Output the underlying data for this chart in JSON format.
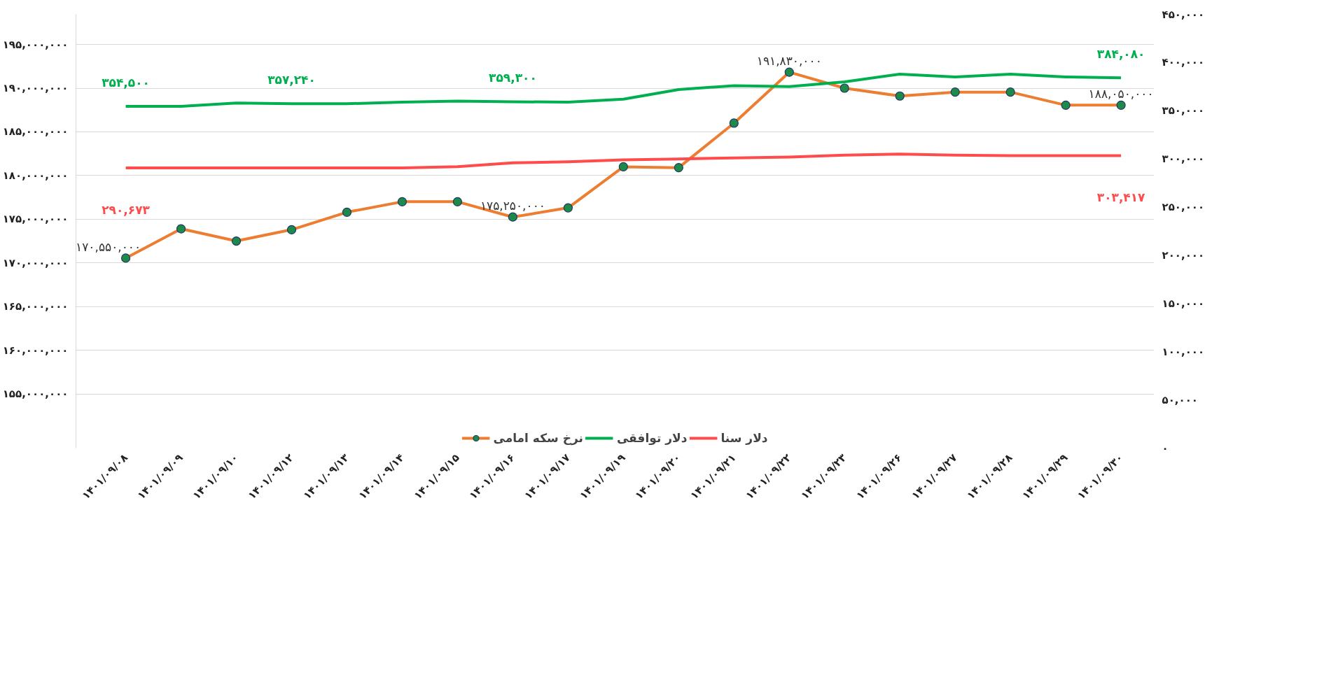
{
  "chart_data": {
    "type": "line",
    "categories": [
      "۱۴۰۱/۰۹/۰۸",
      "۱۴۰۱/۰۹/۰۹",
      "۱۴۰۱/۰۹/۱۰",
      "۱۴۰۱/۰۹/۱۲",
      "۱۴۰۱/۰۹/۱۳",
      "۱۴۰۱/۰۹/۱۴",
      "۱۴۰۱/۰۹/۱۵",
      "۱۴۰۱/۰۹/۱۶",
      "۱۴۰۱/۰۹/۱۷",
      "۱۴۰۱/۰۹/۱۹",
      "۱۴۰۱/۰۹/۲۰",
      "۱۴۰۱/۰۹/۲۱",
      "۱۴۰۱/۰۹/۲۲",
      "۱۴۰۱/۰۹/۲۳",
      "۱۴۰۱/۰۹/۲۶",
      "۱۴۰۱/۰۹/۲۷",
      "۱۴۰۱/۰۹/۲۸",
      "۱۴۰۱/۰۹/۲۹",
      "۱۴۰۱/۰۹/۳۰"
    ],
    "series": [
      {
        "name": "نرخ سکه امامی",
        "color": "#ed7d31",
        "marker": "circle",
        "values": [
          170550000,
          173900000,
          172500000,
          173800000,
          175800000,
          177000000,
          177000000,
          175250000,
          176300000,
          181000000,
          180900000,
          186000000,
          191830000,
          190000000,
          189100000,
          189550000,
          189550000,
          188050000,
          188050000
        ],
        "value_labels": [
          "۱۷۰,۵۵۰,۰۰۰",
          null,
          null,
          null,
          null,
          null,
          null,
          "۱۷۵,۲۵۰,۰۰۰",
          null,
          null,
          null,
          null,
          "۱۹۱,۸۳۰,۰۰۰",
          null,
          null,
          null,
          null,
          null,
          "۱۸۸,۰۵۰,۰۰۰"
        ]
      },
      {
        "name": "دلار توافقی",
        "color": "#00b050",
        "axis": "y2",
        "values": [
          354500,
          354500,
          358000,
          357240,
          357240,
          359000,
          360000,
          359300,
          359000,
          362000,
          372000,
          376000,
          375000,
          380000,
          388000,
          385000,
          388000,
          385000,
          384080
        ],
        "value_labels": [
          "۳۵۴,۵۰۰",
          null,
          null,
          "۳۵۷,۲۴۰",
          null,
          null,
          null,
          "۳۵۹,۳۰۰",
          null,
          null,
          null,
          null,
          null,
          null,
          null,
          null,
          null,
          null,
          "۳۸۴,۰۸۰"
        ]
      },
      {
        "name": "دلار سنا",
        "color": "#ff4b4b",
        "axis": "y2",
        "values": [
          290673,
          290673,
          290673,
          290673,
          290673,
          290673,
          292000,
          296000,
          297000,
          299000,
          300000,
          301000,
          302000,
          304000,
          305000,
          304000,
          303417,
          303417,
          303417
        ],
        "value_labels": [
          "۲۹۰,۶۷۳",
          null,
          null,
          null,
          null,
          null,
          null,
          null,
          null,
          null,
          null,
          null,
          null,
          null,
          null,
          null,
          null,
          null,
          "۳۰۳,۴۱۷"
        ]
      }
    ],
    "ylim": [
      148800000,
      198450000
    ],
    "yticks": [
      {
        "value": 155000000,
        "label": "۱۵۵,۰۰۰,۰۰۰"
      },
      {
        "value": 160000000,
        "label": "۱۶۰,۰۰۰,۰۰۰"
      },
      {
        "value": 165000000,
        "label": "۱۶۵,۰۰۰,۰۰۰"
      },
      {
        "value": 170000000,
        "label": "۱۷۰,۰۰۰,۰۰۰"
      },
      {
        "value": 175000000,
        "label": "۱۷۵,۰۰۰,۰۰۰"
      },
      {
        "value": 180000000,
        "label": "۱۸۰,۰۰۰,۰۰۰"
      },
      {
        "value": 185000000,
        "label": "۱۸۵,۰۰۰,۰۰۰"
      },
      {
        "value": 190000000,
        "label": "۱۹۰,۰۰۰,۰۰۰"
      },
      {
        "value": 195000000,
        "label": "۱۹۵,۰۰۰,۰۰۰"
      }
    ],
    "y2lim": [
      0,
      450000
    ],
    "y2ticks": [
      {
        "value": 0,
        "label": "۰"
      },
      {
        "value": 50000,
        "label": "۵۰,۰۰۰"
      },
      {
        "value": 100000,
        "label": "۱۰۰,۰۰۰"
      },
      {
        "value": 150000,
        "label": "۱۵۰,۰۰۰"
      },
      {
        "value": 200000,
        "label": "۲۰۰,۰۰۰"
      },
      {
        "value": 250000,
        "label": "۲۵۰,۰۰۰"
      },
      {
        "value": 300000,
        "label": "۳۰۰,۰۰۰"
      },
      {
        "value": 350000,
        "label": "۳۵۰,۰۰۰"
      },
      {
        "value": 400000,
        "label": "۴۰۰,۰۰۰"
      },
      {
        "value": 450000,
        "label": "۴۵۰,۰۰۰"
      }
    ],
    "grid": "y",
    "legend": "bottom"
  }
}
